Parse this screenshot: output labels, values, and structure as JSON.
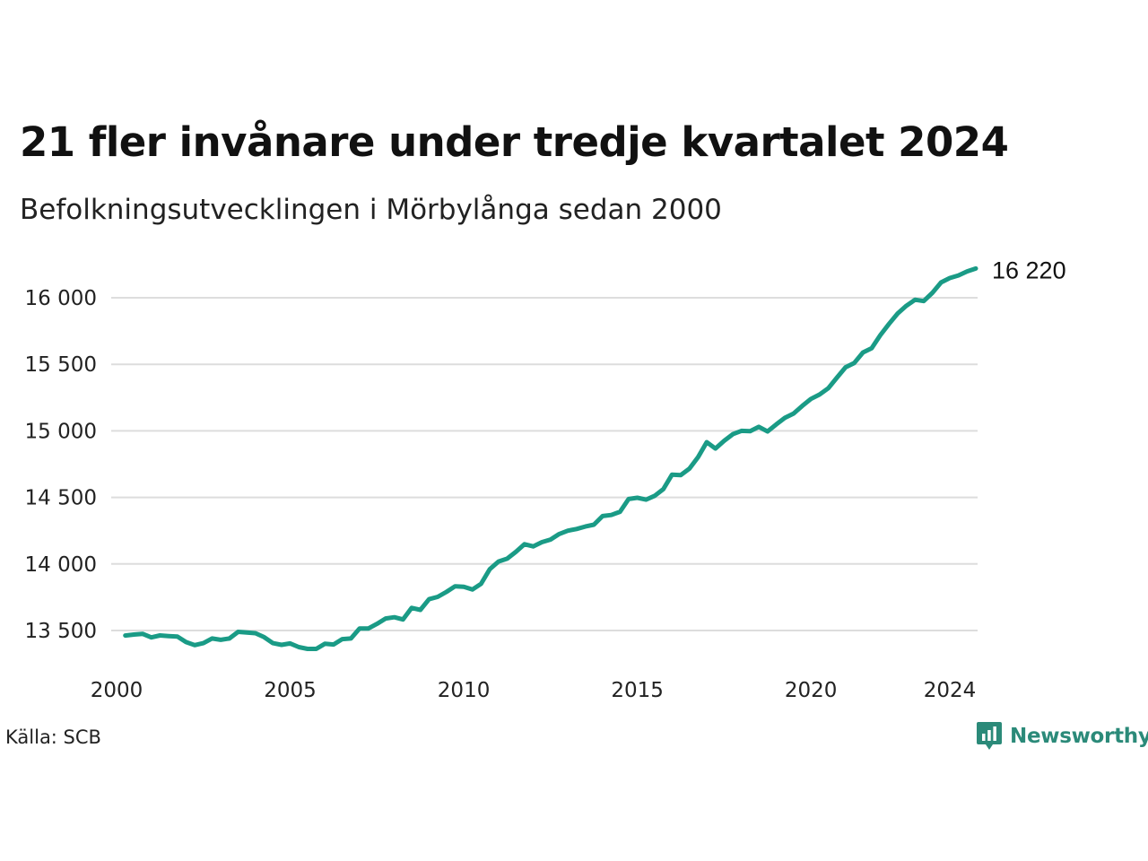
{
  "header": {
    "title": "21 fler invånare under tredje kvartalet 2024",
    "subtitle": "Befolkningsutvecklingen i Mörbylånga sedan 2000"
  },
  "footer": {
    "source": "Källa: SCB",
    "brand": "Newsworthy"
  },
  "colors": {
    "line": "#1a9b86",
    "grid": "#dddddd",
    "brand": "#2b8a79"
  },
  "chart_data": {
    "type": "line",
    "title": "21 fler invånare under tredje kvartalet 2024",
    "subtitle": "Befolkningsutvecklingen i Mörbylånga sedan 2000",
    "xlabel": "",
    "ylabel": "",
    "grid": true,
    "legend": "none",
    "ylim": [
      13300,
      16250
    ],
    "xlim": [
      2000,
      2024.75
    ],
    "y_ticks": [
      13500,
      14000,
      14500,
      15000,
      15500,
      16000
    ],
    "y_tick_labels": [
      "13 500",
      "14 000",
      "14 500",
      "15 000",
      "15 500",
      "16 000"
    ],
    "x_ticks": [
      2000,
      2005,
      2010,
      2015,
      2020,
      2024
    ],
    "x_tick_labels": [
      "2000",
      "2005",
      "2010",
      "2015",
      "2020",
      "2024"
    ],
    "end_label": "16 220",
    "x": [
      2000.25,
      2000.5,
      2000.75,
      2001,
      2001.25,
      2001.5,
      2001.75,
      2002,
      2002.25,
      2002.5,
      2002.75,
      2003,
      2003.25,
      2003.5,
      2003.75,
      2004,
      2004.25,
      2004.5,
      2004.75,
      2005,
      2005.25,
      2005.5,
      2005.75,
      2006,
      2006.25,
      2006.5,
      2006.75,
      2007,
      2007.25,
      2007.5,
      2007.75,
      2008,
      2008.25,
      2008.5,
      2008.75,
      2009,
      2009.25,
      2009.5,
      2009.75,
      2010,
      2010.25,
      2010.5,
      2010.75,
      2011,
      2011.25,
      2011.5,
      2011.75,
      2012,
      2012.25,
      2012.5,
      2012.75,
      2013,
      2013.25,
      2013.5,
      2013.75,
      2014,
      2014.25,
      2014.5,
      2014.75,
      2015,
      2015.25,
      2015.5,
      2015.75,
      2016,
      2016.25,
      2016.5,
      2016.75,
      2017,
      2017.25,
      2017.5,
      2017.75,
      2018,
      2018.25,
      2018.5,
      2018.75,
      2019,
      2019.25,
      2019.5,
      2019.75,
      2020,
      2020.25,
      2020.5,
      2020.75,
      2021,
      2021.25,
      2021.5,
      2021.75,
      2022,
      2022.25,
      2022.5,
      2022.75,
      2023,
      2023.25,
      2023.5,
      2023.75,
      2024,
      2024.25,
      2024.5,
      2024.75
    ],
    "series": [
      {
        "values": [
          13462,
          13470,
          13475,
          13448,
          13463,
          13458,
          13455,
          13413,
          13390,
          13405,
          13440,
          13430,
          13440,
          13490,
          13485,
          13480,
          13450,
          13405,
          13392,
          13403,
          13375,
          13362,
          13362,
          13400,
          13395,
          13435,
          13440,
          13515,
          13515,
          13550,
          13590,
          13600,
          13583,
          13670,
          13655,
          13735,
          13753,
          13790,
          13832,
          13828,
          13808,
          13851,
          13961,
          14018,
          14040,
          14090,
          14148,
          14132,
          14164,
          14183,
          14225,
          14250,
          14263,
          14281,
          14295,
          14360,
          14368,
          14392,
          14488,
          14497,
          14483,
          14512,
          14562,
          14671,
          14667,
          14716,
          14802,
          14915,
          14867,
          14925,
          14975,
          15000,
          14998,
          15030,
          14995,
          15048,
          15098,
          15130,
          15187,
          15240,
          15273,
          15320,
          15400,
          15478,
          15510,
          15589,
          15621,
          15720,
          15803,
          15882,
          15940,
          15985,
          15975,
          16037,
          16115,
          16148,
          16168,
          16198,
          16220
        ]
      }
    ]
  }
}
